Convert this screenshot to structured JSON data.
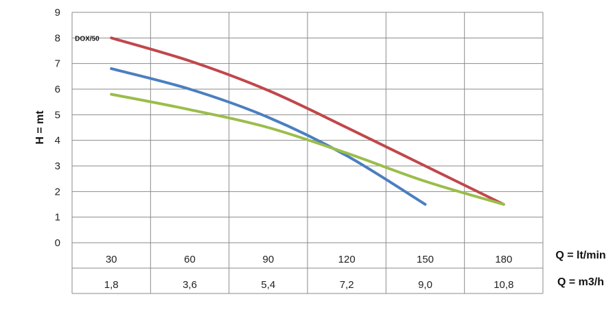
{
  "chart_data": {
    "type": "line",
    "ylabel": "H = mt",
    "ylim": [
      0,
      9
    ],
    "yticks": [
      "0",
      "1",
      "2",
      "3",
      "4",
      "5",
      "6",
      "7",
      "8",
      "9"
    ],
    "x_rows": [
      {
        "label": "Q = lt/min",
        "values": [
          "30",
          "60",
          "90",
          "120",
          "150",
          "180"
        ]
      },
      {
        "label": "Q = m3/h",
        "values": [
          "1,8",
          "3,6",
          "5,4",
          "7,2",
          "9,0",
          "10,8"
        ]
      }
    ],
    "x_unit": "lt/min",
    "grid": true,
    "series": [
      {
        "name": "DOX/50",
        "color": "#c0474b",
        "points": [
          [
            30,
            8.0
          ],
          [
            60,
            7.1
          ],
          [
            90,
            5.95
          ],
          [
            120,
            4.5
          ],
          [
            150,
            3.0
          ],
          [
            180,
            1.5
          ]
        ]
      },
      {
        "color": "#4b7fc0",
        "points": [
          [
            30,
            6.8
          ],
          [
            60,
            6.0
          ],
          [
            90,
            4.9
          ],
          [
            120,
            3.4
          ],
          [
            150,
            1.5
          ]
        ]
      },
      {
        "color": "#9bbd4a",
        "points": [
          [
            30,
            5.8
          ],
          [
            60,
            5.2
          ],
          [
            90,
            4.5
          ],
          [
            120,
            3.5
          ],
          [
            150,
            2.4
          ],
          [
            180,
            1.5
          ]
        ]
      }
    ]
  }
}
